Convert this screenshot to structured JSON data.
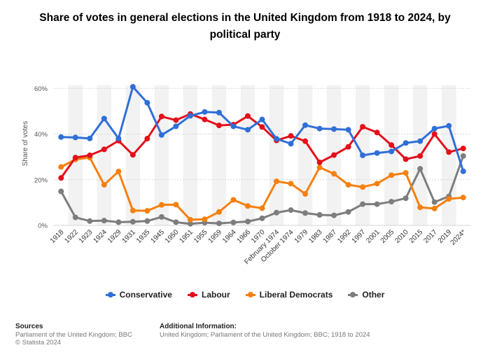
{
  "title": "Share of votes in general elections in the United Kingdom from 1918 to 2024, by political party",
  "chart_data": {
    "type": "line",
    "ylabel": "Share of votes",
    "xlabel": "",
    "ylim": [
      0,
      65
    ],
    "yticks": [
      "0%",
      "20%",
      "40%",
      "60%"
    ],
    "ytick_values": [
      0,
      20,
      40,
      60
    ],
    "categories": [
      "1918",
      "1922",
      "1923",
      "1924",
      "1929",
      "1931",
      "1935",
      "1945",
      "1950",
      "1951",
      "1955",
      "1959",
      "1964",
      "1966",
      "1970",
      "February 1974",
      "October 1974",
      "1979",
      "1983",
      "1987",
      "1992",
      "1997",
      "2001",
      "2005",
      "2010",
      "2015",
      "2017",
      "2019",
      "2024*"
    ],
    "series": [
      {
        "name": "Conservative",
        "color": "#2f6fd8",
        "values": [
          38.7,
          38.5,
          38.1,
          46.8,
          38.1,
          60.7,
          53.7,
          39.6,
          43.4,
          48.0,
          49.7,
          49.4,
          43.4,
          41.9,
          46.4,
          37.9,
          35.8,
          43.9,
          42.4,
          42.2,
          41.9,
          30.7,
          31.7,
          32.4,
          36.1,
          36.9,
          42.4,
          43.6,
          23.7
        ]
      },
      {
        "name": "Labour",
        "color": "#e3101b",
        "values": [
          20.8,
          29.7,
          30.7,
          33.3,
          37.1,
          30.9,
          38.0,
          47.7,
          46.1,
          48.8,
          46.4,
          43.8,
          44.1,
          47.9,
          43.1,
          37.2,
          39.2,
          36.9,
          27.6,
          30.8,
          34.4,
          43.2,
          40.7,
          35.2,
          29.0,
          30.4,
          40.0,
          32.1,
          33.7
        ]
      },
      {
        "name": "Liberal Democrats",
        "color": "#f5800f",
        "values": [
          25.6,
          28.9,
          29.7,
          17.8,
          23.6,
          6.5,
          6.4,
          9.0,
          9.1,
          2.5,
          2.7,
          5.9,
          11.2,
          8.5,
          7.5,
          19.3,
          18.3,
          13.8,
          25.4,
          22.6,
          17.8,
          16.8,
          18.3,
          22.0,
          23.0,
          7.9,
          7.4,
          11.6,
          12.2
        ]
      },
      {
        "name": "Other",
        "color": "#7d7d7d",
        "values": [
          14.9,
          3.5,
          1.9,
          2.1,
          1.4,
          1.6,
          1.9,
          3.7,
          1.4,
          0.7,
          1.2,
          0.9,
          1.3,
          1.7,
          3.1,
          5.6,
          6.7,
          5.4,
          4.6,
          4.4,
          5.9,
          9.3,
          9.3,
          10.4,
          11.9,
          24.8,
          10.2,
          12.7,
          30.4
        ]
      }
    ]
  },
  "sources": {
    "heading": "Sources",
    "lines": [
      "Parliament of the United Kingdom; BBC",
      "© Statista 2024"
    ]
  },
  "additional": {
    "heading": "Additional Information:",
    "text": "United Kingdom; Parliament of the United Kingdom; BBC; 1918 to 2024"
  }
}
